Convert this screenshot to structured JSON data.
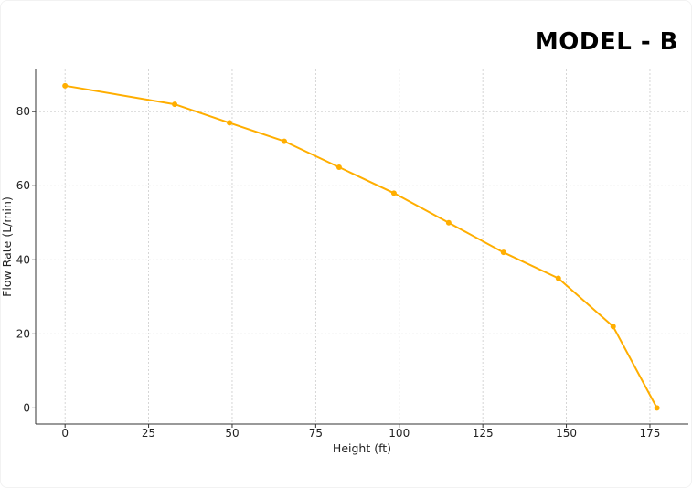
{
  "header": {
    "title": "MODEL - B"
  },
  "chart_data": {
    "type": "line",
    "title": "MODEL - B",
    "xlabel": "Height (ft)",
    "ylabel": "Flow Rate (L/min)",
    "xlim": [
      -8.8,
      186.5
    ],
    "ylim": [
      -4.35,
      91.4
    ],
    "xticks": [
      0,
      25,
      50,
      75,
      100,
      125,
      150,
      175
    ],
    "yticks": [
      0,
      20,
      40,
      60,
      80
    ],
    "grid": true,
    "grid_style": "dotted",
    "colors": {
      "line": "#FFAE00",
      "grid": "#cccccc",
      "axis": "#333333"
    },
    "series": [
      {
        "x": [
          0,
          32.8,
          49.2,
          65.6,
          82,
          98.4,
          114.8,
          131.2,
          147.6,
          164,
          177.1
        ],
        "y": [
          87,
          82,
          77,
          72,
          65,
          58,
          50,
          42,
          35,
          22,
          0
        ]
      }
    ]
  }
}
